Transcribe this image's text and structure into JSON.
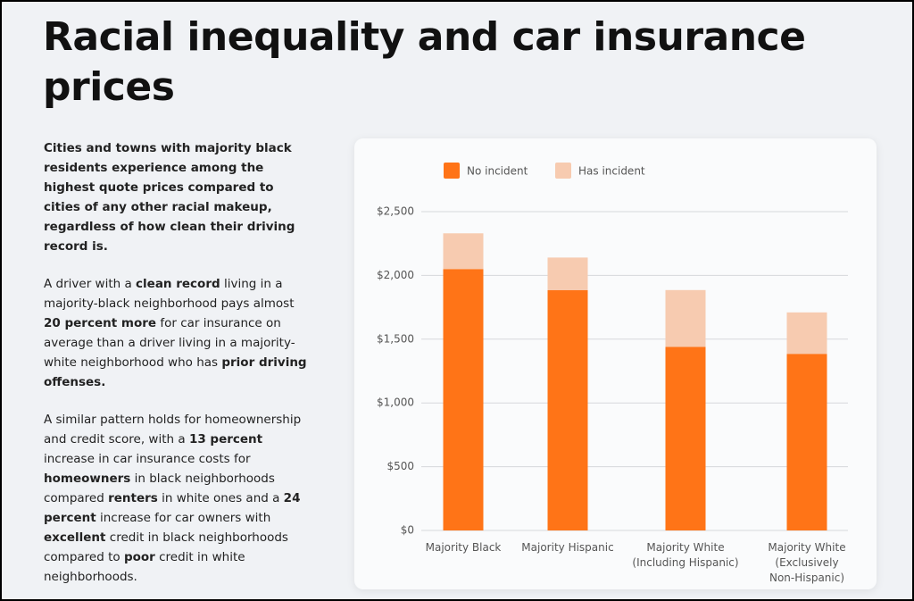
{
  "title": "Racial inequality and car insurance prices",
  "paragraphs": [
    [
      {
        "text": "Cities and towns with majority black residents experience among the highest quote prices compared to cities of any other racial makeup, regardless of how clean their driving record is.",
        "bold": true
      }
    ],
    [
      {
        "text": "A driver with a "
      },
      {
        "text": "clean record",
        "bold": true
      },
      {
        "text": " living in a majority-black neighborhood pays almost "
      },
      {
        "text": "20 percent more",
        "bold": true
      },
      {
        "text": " for car insurance on average than a driver living in a majority-white neighborhood who has "
      },
      {
        "text": "prior driving offenses.",
        "bold": true
      }
    ],
    [
      {
        "text": "A similar pattern holds for homeownership and credit score, with a "
      },
      {
        "text": "13 percent",
        "bold": true
      },
      {
        "text": " increase in car insurance costs for "
      },
      {
        "text": "homeowners",
        "bold": true
      },
      {
        "text": " in black neighborhoods compared "
      },
      {
        "text": "renters",
        "bold": true
      },
      {
        "text": " in white ones and a "
      },
      {
        "text": "24 percent",
        "bold": true
      },
      {
        "text": " increase for car owners with "
      },
      {
        "text": "excellent",
        "bold": true
      },
      {
        "text": " credit in black neighborhoods compared to "
      },
      {
        "text": "poor",
        "bold": true
      },
      {
        "text": " credit in white neighborhoods."
      }
    ]
  ],
  "chart_data": {
    "type": "stacked_bar",
    "categories": [
      "Majority Black",
      "Majority Hispanic",
      "Majority White (Including Hispanic)",
      "Majority White (Exclusively Non-Hispanic)"
    ],
    "series": [
      {
        "name": "No incident",
        "color": "#ff7417",
        "values": [
          2050,
          1885,
          1440,
          1385
        ]
      },
      {
        "name": "Has incident",
        "color": "#f7cbb0",
        "values": [
          280,
          255,
          445,
          325
        ]
      }
    ],
    "ylim": [
      0,
      2500
    ],
    "yticks": [
      {
        "value": 0,
        "label": "$0"
      },
      {
        "value": 500,
        "label": "$500"
      },
      {
        "value": 1000,
        "label": "$1,000"
      },
      {
        "value": 1500,
        "label": "$1,500"
      },
      {
        "value": 2000,
        "label": "$2,000"
      },
      {
        "value": 2500,
        "label": "$2,500"
      }
    ],
    "grid": true,
    "legend": "top"
  }
}
